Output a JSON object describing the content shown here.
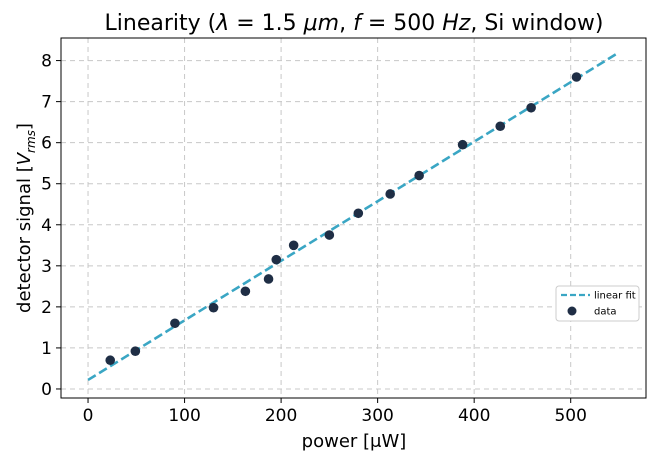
{
  "chart_data": {
    "type": "scatter",
    "title": "Linearity (λ = 1.5 μm, f = 500 Hz, Si window)",
    "xlabel": "power [μW]",
    "ylabel": "detector signal [V_rms]",
    "xlim": [
      -28,
      578
    ],
    "ylim": [
      -0.22,
      8.55
    ],
    "xticks": [
      0,
      100,
      200,
      300,
      400,
      500
    ],
    "yticks": [
      0,
      1,
      2,
      3,
      4,
      5,
      6,
      7,
      8
    ],
    "grid": true,
    "legend_position": "center-right",
    "colors": {
      "fit": "#3aa6c4",
      "data": "#1f2e45"
    },
    "series": [
      {
        "name": "linear fit",
        "kind": "line",
        "style": "dashed",
        "x": [
          0,
          550
        ],
        "y": [
          0.22,
          8.2
        ]
      },
      {
        "name": "data",
        "kind": "scatter",
        "x": [
          23,
          49,
          90,
          130,
          163,
          187,
          195,
          213,
          250,
          280,
          313,
          343,
          388,
          427,
          459,
          506
        ],
        "y": [
          0.7,
          0.92,
          1.6,
          1.98,
          2.38,
          2.68,
          3.15,
          3.5,
          3.75,
          4.28,
          4.75,
          5.2,
          5.95,
          6.4,
          6.85,
          7.6
        ]
      }
    ]
  }
}
